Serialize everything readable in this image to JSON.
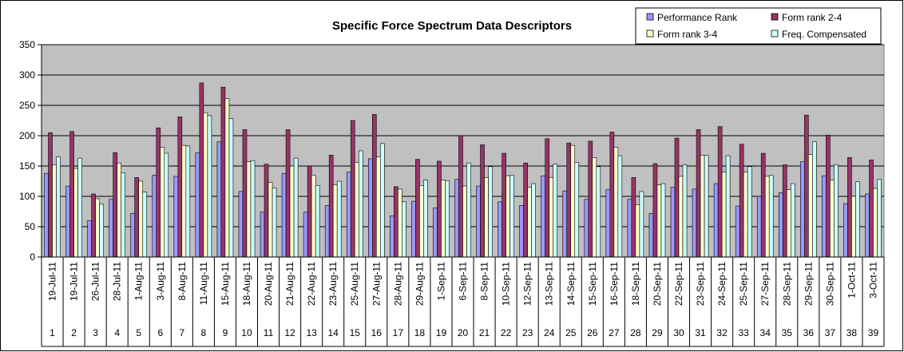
{
  "chart_data": {
    "type": "bar",
    "title": "Specific Force Spectrum Data Descriptors",
    "ylim": [
      0,
      350
    ],
    "yticks": [
      0,
      50,
      100,
      150,
      200,
      250,
      300,
      350
    ],
    "grid": "horizontal",
    "legend_position": "top-right",
    "categories": [
      "19-Jul-11",
      "19-Jul-11",
      "26-Jul-11",
      "28-Jul-11",
      "1-Aug-11",
      "3-Aug-11",
      "8-Aug-11",
      "11-Aug-11",
      "15-Aug-11",
      "18-Aug-11",
      "20-Aug-11",
      "21-Aug-11",
      "22-Aug-11",
      "23-Aug-11",
      "25-Aug-11",
      "27-Aug-11",
      "28-Aug-11",
      "29-Aug-11",
      "1-Sep-11",
      "6-Sep-11",
      "8-Sep-11",
      "10-Sep-11",
      "12-Sep-11",
      "13-Sep-11",
      "14-Sep-11",
      "15-Sep-11",
      "16-Sep-11",
      "18-Sep-11",
      "20-Sep-11",
      "22-Sep-11",
      "23-Sep-11",
      "24-Sep-11",
      "25-Sep-11",
      "27-Sep-11",
      "28-Sep-11",
      "29-Sep-11",
      "30-Sep-11",
      "1-Oct-11",
      "3-Oct-11"
    ],
    "category_numbers": [
      "1",
      "2",
      "3",
      "4",
      "5",
      "6",
      "7",
      "8",
      "9",
      "10",
      "11",
      "12",
      "13",
      "14",
      "15",
      "16",
      "17",
      "18",
      "19",
      "20",
      "21",
      "22",
      "23",
      "24",
      "25",
      "26",
      "27",
      "28",
      "29",
      "30",
      "31",
      "32",
      "33",
      "34",
      "35",
      "36",
      "37",
      "38",
      "39"
    ],
    "series": [
      {
        "name": "Performance Rank",
        "color": "#9999FF",
        "values": [
          138,
          117,
          60,
          95,
          72,
          135,
          133,
          172,
          190,
          108,
          74,
          138,
          74,
          85,
          140,
          162,
          68,
          92,
          81,
          128,
          117,
          91,
          85,
          134,
          109,
          95,
          111,
          95,
          72,
          115,
          112,
          121,
          84,
          100,
          106,
          157,
          134,
          88,
          104
        ]
      },
      {
        "name": "Form rank 2-4",
        "color": "#993366",
        "values": [
          205,
          207,
          104,
          172,
          131,
          213,
          231,
          287,
          280,
          210,
          153,
          210,
          150,
          168,
          225,
          235,
          116,
          161,
          158,
          200,
          185,
          171,
          155,
          195,
          188,
          191,
          206,
          131,
          154,
          196,
          210,
          215,
          186,
          171,
          152,
          234,
          201,
          164,
          160
        ]
      },
      {
        "name": "Form rank 3-4",
        "color": "#FFFFCC",
        "values": [
          152,
          146,
          96,
          155,
          125,
          181,
          184,
          238,
          261,
          157,
          123,
          150,
          135,
          119,
          156,
          165,
          112,
          118,
          127,
          117,
          131,
          134,
          115,
          131,
          184,
          164,
          181,
          86,
          119,
          133,
          168,
          140,
          140,
          133,
          111,
          169,
          127,
          100,
          113
        ]
      },
      {
        "name": "Freq. Compensated",
        "color": "#CCFFFF",
        "values": [
          165,
          163,
          87,
          139,
          107,
          171,
          183,
          233,
          228,
          159,
          114,
          163,
          118,
          125,
          175,
          187,
          91,
          127,
          126,
          155,
          149,
          135,
          121,
          153,
          156,
          149,
          167,
          108,
          121,
          152,
          168,
          167,
          149,
          135,
          121,
          190,
          152,
          124,
          128
        ]
      }
    ]
  }
}
